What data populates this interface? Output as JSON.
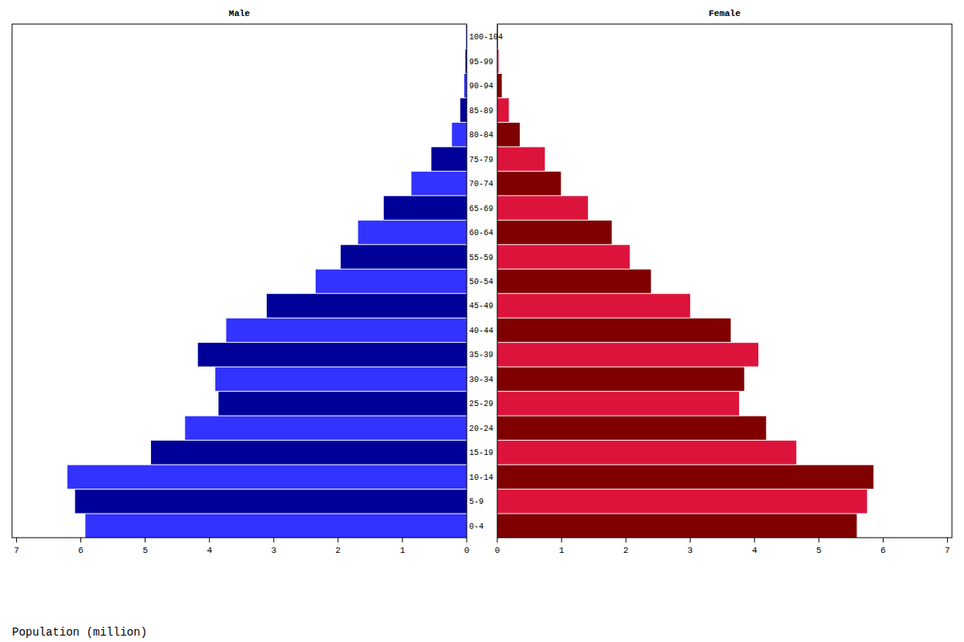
{
  "chart_data": {
    "type": "bar",
    "orientation": "horizontal",
    "xlabel": "Population (million)",
    "categories": [
      "0-4",
      "5-9",
      "10-14",
      "15-19",
      "20-24",
      "25-29",
      "30-34",
      "35-39",
      "40-44",
      "45-49",
      "50-54",
      "55-59",
      "60-64",
      "65-69",
      "70-74",
      "75-79",
      "80-84",
      "85-89",
      "90-94",
      "95-99",
      "100-104"
    ],
    "series": [
      {
        "name": "Male",
        "colors": [
          "#3333ff",
          "#000099",
          "#3333ff",
          "#000099",
          "#3333ff",
          "#000099",
          "#3333ff",
          "#000099",
          "#3333ff",
          "#000099",
          "#3333ff",
          "#000099",
          "#3333ff",
          "#000099",
          "#3333ff",
          "#000099",
          "#3333ff",
          "#000099",
          "#3333ff",
          "#000099",
          "#3333ff"
        ],
        "values": [
          5.93,
          6.09,
          6.21,
          4.91,
          4.38,
          3.86,
          3.91,
          4.18,
          3.74,
          3.11,
          2.35,
          1.96,
          1.69,
          1.29,
          0.86,
          0.55,
          0.23,
          0.1,
          0.04,
          0.02,
          0.01
        ]
      },
      {
        "name": "Female",
        "colors": [
          "#800000",
          "#dc143c",
          "#800000",
          "#dc143c",
          "#800000",
          "#dc143c",
          "#800000",
          "#dc143c",
          "#800000",
          "#dc143c",
          "#800000",
          "#dc143c",
          "#800000",
          "#dc143c",
          "#800000",
          "#dc143c",
          "#800000",
          "#dc143c",
          "#800000",
          "#dc143c",
          "#800000"
        ],
        "values": [
          5.59,
          5.75,
          5.85,
          4.65,
          4.18,
          3.76,
          3.84,
          4.06,
          3.63,
          3.0,
          2.39,
          2.06,
          1.78,
          1.41,
          0.99,
          0.74,
          0.35,
          0.18,
          0.07,
          0.02,
          0.01
        ]
      }
    ],
    "xlim": [
      0,
      7.07
    ],
    "xticks": [
      0,
      1,
      2,
      3,
      4,
      5,
      6,
      7
    ]
  }
}
